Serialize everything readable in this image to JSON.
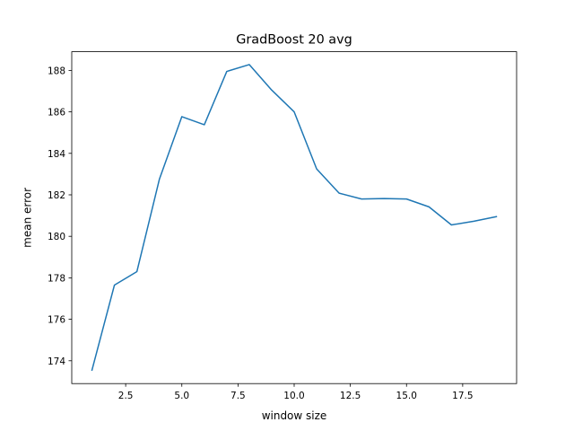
{
  "chart_data": {
    "type": "line",
    "title": "GradBoost 20 avg",
    "xlabel": "window size",
    "ylabel": "mean error",
    "xlim": [
      0.1,
      19.9
    ],
    "ylim": [
      172.9,
      188.9
    ],
    "xticks": [
      2.5,
      5.0,
      7.5,
      10.0,
      12.5,
      15.0,
      17.5
    ],
    "xtick_labels": [
      "2.5",
      "5.0",
      "7.5",
      "10.0",
      "12.5",
      "15.0",
      "17.5"
    ],
    "yticks": [
      174,
      176,
      178,
      180,
      182,
      184,
      186,
      188
    ],
    "ytick_labels": [
      "174",
      "176",
      "178",
      "180",
      "182",
      "184",
      "186",
      "188"
    ],
    "grid": false,
    "x": [
      1,
      2,
      3,
      4,
      5,
      6,
      7,
      8,
      9,
      10,
      11,
      12,
      13,
      14,
      15,
      16,
      17,
      18,
      19
    ],
    "series": [
      {
        "color": "#1f77b4",
        "values": [
          173.55,
          177.65,
          178.3,
          182.75,
          185.77,
          185.38,
          187.95,
          188.28,
          187.05,
          186.0,
          183.25,
          182.08,
          181.8,
          181.82,
          181.8,
          181.42,
          180.55,
          180.73,
          180.95
        ]
      }
    ]
  }
}
